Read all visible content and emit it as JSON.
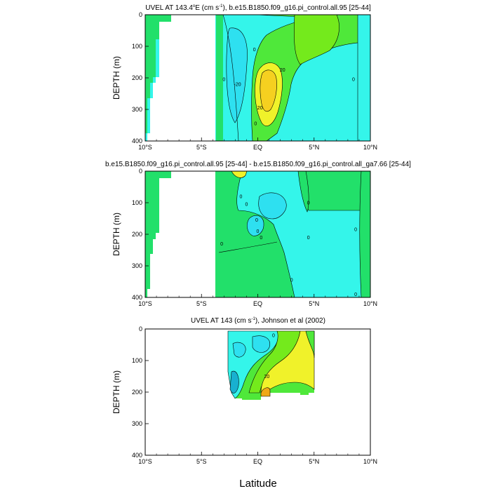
{
  "palette": {
    "cyan_dark": "#18b0d0",
    "cyan_mid": "#2ee0f0",
    "cyan_light": "#34f5ea",
    "green_bright": "#22e06a",
    "green_mid": "#4fe83a",
    "green_light": "#74ea1c",
    "yellow": "#f0f22a",
    "yellow_orange": "#f5d020",
    "orange": "#f0a818",
    "land": "#ffffff",
    "line": "#000000"
  },
  "xlabel": "Latitude",
  "chart_data": [
    {
      "type": "contour",
      "title": "UVEL AT 143.4°E (cm s⁻¹), b.e15.B1850.f09_g16.pi_control.all.95 [25-44]",
      "title_main": "UVEL AT 143.4",
      "title_sup1": "o",
      "title_mid": "E (cm s",
      "title_sup2": "-1",
      "title_tail": "), b.e15.B1850.f09_g16.pi_control.all.95 [25-44]",
      "ylabel": "DEPTH (m)",
      "xlim": [
        -10,
        10
      ],
      "ylim": [
        0,
        400
      ],
      "y_inverted": true,
      "x_ticks": [
        "10°S",
        "5°S",
        "EQ",
        "5°N",
        "10°N"
      ],
      "y_ticks": [
        "0",
        "100",
        "200",
        "300",
        "400"
      ],
      "contour_labels": [
        {
          "text": "0",
          "x": -0.3,
          "y": 115
        },
        {
          "text": "0",
          "x": -3.0,
          "y": 210
        },
        {
          "text": "-20",
          "x": -1.8,
          "y": 225
        },
        {
          "text": "20",
          "x": 2.2,
          "y": 180
        },
        {
          "text": "20",
          "x": 0.2,
          "y": 300
        },
        {
          "text": "0",
          "x": -0.2,
          "y": 350
        },
        {
          "text": "0",
          "x": 8.5,
          "y": 210
        }
      ]
    },
    {
      "type": "contour",
      "title": "b.e15.B1850.f09_g16.pi_control.all.95 [25-44] - b.e15.B1850.f09_g16.pi_control.all_ga7.66 [25-44]",
      "ylabel": "DEPTH (m)",
      "xlim": [
        -10,
        10
      ],
      "ylim": [
        0,
        400
      ],
      "y_inverted": true,
      "x_ticks": [
        "10°S",
        "5°S",
        "EQ",
        "5°N",
        "10°N"
      ],
      "y_ticks": [
        "0",
        "100",
        "200",
        "300",
        "400"
      ],
      "contour_labels": [
        {
          "text": "0",
          "x": -1.5,
          "y": 85
        },
        {
          "text": "0",
          "x": -1.0,
          "y": 110
        },
        {
          "text": "0",
          "x": -0.1,
          "y": 160
        },
        {
          "text": "0",
          "x": 0.0,
          "y": 195
        },
        {
          "text": "0",
          "x": 0.3,
          "y": 215
        },
        {
          "text": "0",
          "x": -3.2,
          "y": 235
        },
        {
          "text": "0",
          "x": 4.5,
          "y": 105
        },
        {
          "text": "0",
          "x": 4.5,
          "y": 215
        },
        {
          "text": "0",
          "x": 8.7,
          "y": 190
        },
        {
          "text": "0",
          "x": 3.0,
          "y": 350
        },
        {
          "text": "0",
          "x": 8.7,
          "y": 395
        }
      ]
    },
    {
      "type": "contour",
      "title": "UVEL AT 143 (cm s⁻¹), Johnson et al (2002)",
      "title_main": "UVEL AT 143 (cm s",
      "title_sup": "-1",
      "title_tail": "), Johnson et al (2002)",
      "ylabel": "DEPTH (m)",
      "xlim": [
        -10,
        10
      ],
      "ylim": [
        0,
        400
      ],
      "y_inverted": true,
      "x_ticks": [
        "10°S",
        "5°S",
        "EQ",
        "5°N",
        "10°N"
      ],
      "y_ticks": [
        "0",
        "100",
        "200",
        "300",
        "400"
      ],
      "contour_labels": [
        {
          "text": "0",
          "x": 1.4,
          "y": 25
        },
        {
          "text": "20",
          "x": 0.8,
          "y": 155
        }
      ]
    }
  ]
}
